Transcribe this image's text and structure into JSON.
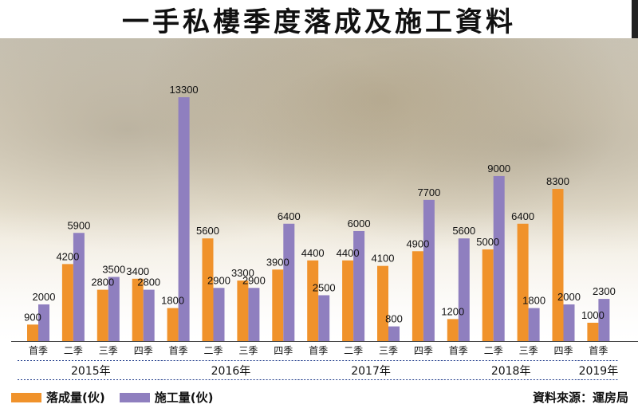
{
  "title": "一手私樓季度落成及施工資料",
  "colors": {
    "completed": "#f0922b",
    "started": "#8f7fbf"
  },
  "legend": {
    "completed": "落成量(伙)",
    "started": "施工量(伙)"
  },
  "source": "資料來源：運房局",
  "chart_data": {
    "type": "bar",
    "title": "一手私樓季度落成及施工資料",
    "categories": [
      "首季",
      "二季",
      "三季",
      "四季",
      "首季",
      "二季",
      "三季",
      "四季",
      "首季",
      "二季",
      "三季",
      "四季",
      "首季",
      "二季",
      "三季",
      "四季",
      "首季"
    ],
    "groups": [
      {
        "label": "2015年",
        "count": 4
      },
      {
        "label": "2016年",
        "count": 4
      },
      {
        "label": "2017年",
        "count": 4
      },
      {
        "label": "2018年",
        "count": 4
      },
      {
        "label": "2019年",
        "count": 1
      }
    ],
    "series": [
      {
        "name": "落成量(伙)",
        "values": [
          900,
          4200,
          2800,
          3400,
          1800,
          5600,
          3300,
          3900,
          4400,
          4400,
          4100,
          4900,
          1200,
          5000,
          6400,
          8300,
          1000
        ]
      },
      {
        "name": "施工量(伙)",
        "values": [
          2000,
          5900,
          3500,
          2800,
          13300,
          2900,
          2900,
          6400,
          2500,
          6000,
          800,
          7700,
          5600,
          9000,
          1800,
          2000,
          2300
        ]
      }
    ],
    "value_labels": {
      "completed": [
        "900",
        "4200",
        "2800",
        "3400",
        "1800",
        "5600",
        "3300",
        "3900",
        "4400",
        "4400",
        "4100",
        "4900",
        "1200",
        "5000",
        "6400",
        "8300",
        "1000"
      ],
      "started": [
        "2000",
        "5900",
        "3500",
        "2800",
        "13300",
        "2900",
        "2900",
        "6400",
        "2500",
        "6000",
        "800",
        "7700",
        "5600",
        "9000",
        "1800",
        "2000",
        "2300"
      ]
    },
    "ylim": [
      0,
      13300
    ],
    "grid": false,
    "legend_position": "bottom-left"
  }
}
